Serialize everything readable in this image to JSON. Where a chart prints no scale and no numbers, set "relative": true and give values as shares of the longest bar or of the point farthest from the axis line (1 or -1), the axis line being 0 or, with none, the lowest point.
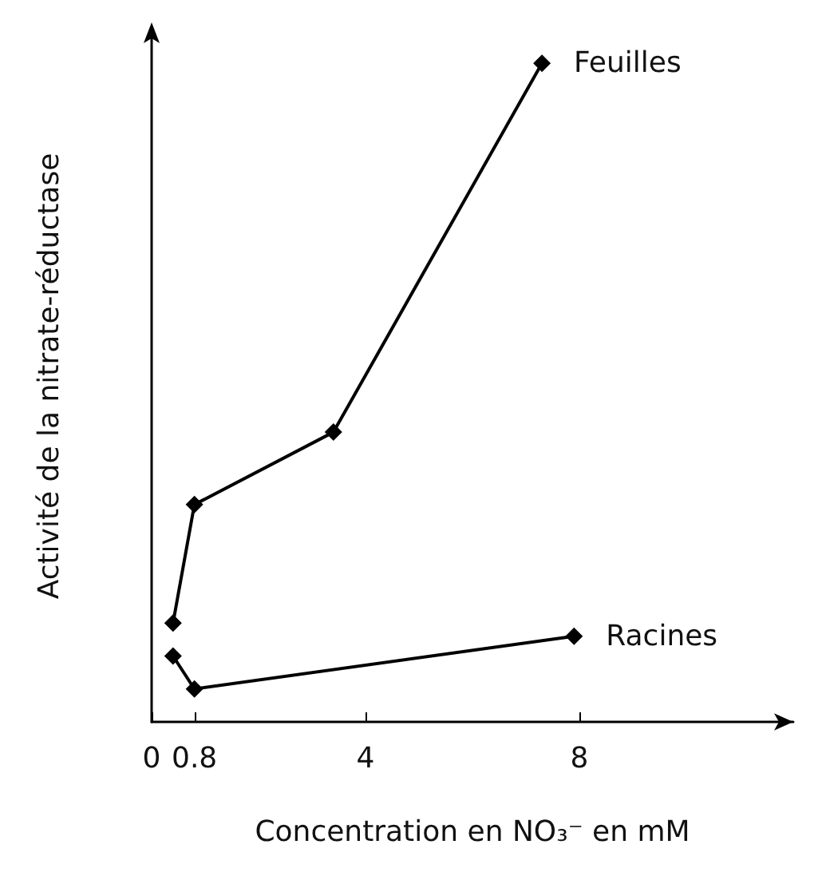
{
  "chart_data": {
    "type": "line",
    "xlabel": "Concentration en NO₃⁻ en mM",
    "ylabel": "Activité de la nitrate-réductase",
    "relative": true,
    "xlim": [
      0,
      12
    ],
    "xticks": [
      0,
      0.8,
      4,
      8
    ],
    "marker": "diamond",
    "line_style": "solid",
    "grid": false,
    "legend": false,
    "series": [
      {
        "name": "Feuilles",
        "color": "#000000",
        "x": [
          0.4,
          0.8,
          3.4,
          7.3
        ],
        "values": [
          0.15,
          0.33,
          0.44,
          1.0
        ]
      },
      {
        "name": "Racines",
        "color": "#000000",
        "x": [
          0.4,
          0.8,
          7.9
        ],
        "values": [
          0.1,
          0.05,
          0.13
        ]
      }
    ]
  }
}
